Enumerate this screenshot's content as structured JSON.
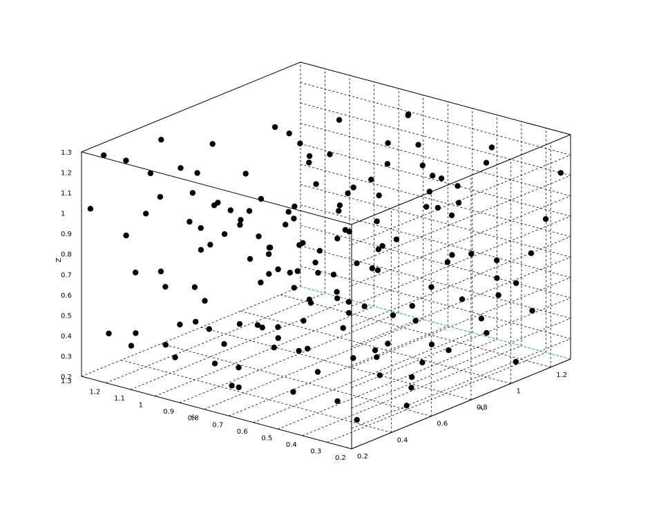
{
  "chart_data": {
    "type": "scatter",
    "title": "",
    "xlabel": "X",
    "ylabel": "Y",
    "zlabel": "Z",
    "xlim": [
      0.2,
      1.3
    ],
    "ylim": [
      0.2,
      1.3
    ],
    "zlim": [
      0.2,
      1.3
    ],
    "x_ticks": [
      "0.2",
      "0.3",
      "0.4",
      "0.5",
      "0.6",
      "0.7",
      "0.8",
      "0.9",
      "1",
      "1.1",
      "1.2",
      "1.3"
    ],
    "y_ticks": [
      "0.2",
      "0.4",
      "0.6",
      "0.8",
      "1",
      "1.2"
    ],
    "z_ticks": [
      "0.2",
      "0.3",
      "0.4",
      "0.5",
      "0.6",
      "0.7",
      "0.8",
      "0.9",
      "1",
      "1.1",
      "1.2",
      "1.3"
    ],
    "grid": true,
    "marker_color": "#000000",
    "points": [
      [
        1.25,
        0.25,
        1.28
      ],
      [
        1.1,
        0.3,
        1.22
      ],
      [
        0.95,
        0.35,
        1.25
      ],
      [
        0.8,
        0.25,
        1.18
      ],
      [
        0.65,
        0.3,
        1.24
      ],
      [
        0.5,
        0.28,
        1.2
      ],
      [
        0.35,
        0.32,
        1.27
      ],
      [
        0.22,
        0.6,
        1.22
      ],
      [
        0.25,
        0.8,
        1.15
      ],
      [
        0.3,
        1.0,
        1.25
      ],
      [
        0.45,
        0.9,
        1.1
      ],
      [
        0.6,
        1.1,
        1.05
      ],
      [
        0.75,
        0.7,
        1.12
      ],
      [
        0.9,
        0.55,
        1.0
      ],
      [
        1.05,
        0.45,
        1.08
      ],
      [
        1.2,
        0.4,
        0.95
      ],
      [
        1.28,
        0.22,
        1.02
      ],
      [
        1.15,
        0.7,
        0.9
      ],
      [
        1.0,
        0.9,
        0.85
      ],
      [
        0.85,
        1.1,
        0.95
      ],
      [
        0.7,
        1.25,
        0.8
      ],
      [
        0.55,
        0.45,
        0.9
      ],
      [
        0.4,
        0.55,
        0.88
      ],
      [
        0.28,
        0.9,
        0.85
      ],
      [
        0.22,
        1.2,
        0.92
      ],
      [
        0.32,
        1.25,
        0.7
      ],
      [
        0.48,
        1.05,
        0.72
      ],
      [
        0.62,
        0.85,
        0.68
      ],
      [
        0.78,
        0.5,
        0.75
      ],
      [
        0.92,
        0.3,
        0.72
      ],
      [
        1.08,
        0.35,
        0.65
      ],
      [
        1.22,
        0.5,
        0.62
      ],
      [
        1.3,
        0.8,
        0.58
      ],
      [
        1.18,
        1.0,
        0.55
      ],
      [
        1.02,
        1.2,
        0.6
      ],
      [
        0.88,
        0.75,
        0.55
      ],
      [
        0.72,
        0.6,
        0.5
      ],
      [
        0.58,
        0.3,
        0.58
      ],
      [
        0.42,
        0.25,
        0.6
      ],
      [
        0.26,
        0.4,
        0.55
      ],
      [
        0.21,
        0.7,
        0.48
      ],
      [
        0.36,
        0.8,
        0.42
      ],
      [
        0.52,
        1.15,
        0.45
      ],
      [
        0.68,
        1.0,
        0.38
      ],
      [
        0.82,
        0.95,
        0.42
      ],
      [
        0.98,
        0.6,
        0.4
      ],
      [
        1.12,
        0.25,
        0.45
      ],
      [
        1.27,
        0.3,
        0.38
      ],
      [
        1.2,
        0.65,
        0.32
      ],
      [
        1.05,
        0.8,
        0.28
      ],
      [
        0.9,
        1.05,
        0.3
      ],
      [
        0.75,
        1.2,
        0.25
      ],
      [
        0.6,
        0.4,
        0.27
      ],
      [
        0.45,
        0.65,
        0.3
      ],
      [
        0.3,
        0.35,
        0.25
      ],
      [
        0.22,
        1.05,
        0.28
      ],
      [
        0.38,
        1.1,
        0.35
      ],
      [
        0.55,
        0.75,
        0.35
      ],
      [
        0.7,
        0.25,
        0.32
      ],
      [
        0.85,
        0.4,
        0.22
      ],
      [
        1.0,
        0.5,
        0.24
      ],
      [
        1.15,
        0.9,
        0.22
      ],
      [
        1.3,
        1.1,
        0.3
      ],
      [
        1.25,
        1.25,
        0.45
      ],
      [
        1.1,
        1.15,
        0.5
      ],
      [
        0.95,
        1.28,
        0.52
      ],
      [
        0.8,
        0.85,
        0.6
      ],
      [
        0.65,
        0.55,
        0.63
      ],
      [
        0.5,
        0.2,
        0.7
      ],
      [
        0.35,
        0.45,
        0.75
      ],
      [
        0.24,
        0.65,
        0.8
      ],
      [
        0.4,
        0.95,
        0.98
      ],
      [
        0.55,
        0.6,
        1.0
      ],
      [
        0.7,
        0.35,
        1.02
      ],
      [
        0.86,
        0.2,
        1.1
      ],
      [
        1.02,
        0.25,
        1.15
      ],
      [
        1.18,
        0.55,
        1.12
      ],
      [
        1.3,
        0.6,
        1.2
      ],
      [
        1.12,
        0.95,
        1.18
      ],
      [
        0.98,
        1.1,
        1.2
      ],
      [
        0.82,
        1.25,
        1.22
      ],
      [
        0.66,
        0.95,
        1.25
      ],
      [
        0.5,
        0.75,
        1.28
      ],
      [
        0.34,
        0.5,
        1.15
      ],
      [
        0.26,
        0.3,
        1.05
      ],
      [
        0.42,
        0.2,
        1.0
      ],
      [
        0.58,
        0.5,
        0.82
      ],
      [
        0.74,
        0.45,
        0.88
      ],
      [
        0.9,
        0.65,
        0.78
      ],
      [
        1.06,
        0.7,
        0.82
      ],
      [
        1.22,
        0.85,
        0.78
      ],
      [
        1.28,
        1.0,
        0.88
      ],
      [
        1.14,
        1.25,
        0.92
      ],
      [
        0.96,
        0.4,
        0.6
      ],
      [
        0.8,
        0.3,
        0.48
      ],
      [
        0.64,
        0.7,
        0.45
      ],
      [
        0.48,
        0.85,
        0.55
      ],
      [
        0.32,
        1.0,
        0.48
      ],
      [
        0.2,
        0.5,
        0.38
      ],
      [
        0.36,
        0.7,
        0.3
      ],
      [
        0.52,
        0.95,
        0.22
      ],
      [
        0.68,
        0.8,
        0.25
      ],
      [
        0.84,
        0.6,
        0.33
      ],
      [
        1.0,
        0.3,
        0.35
      ],
      [
        1.16,
        0.45,
        0.3
      ],
      [
        1.3,
        0.45,
        0.25
      ],
      [
        1.26,
        0.75,
        0.72
      ],
      [
        1.1,
        0.6,
        0.75
      ],
      [
        0.94,
        0.85,
        0.7
      ],
      [
        0.78,
        1.05,
        0.65
      ],
      [
        0.62,
        1.2,
        0.58
      ],
      [
        0.46,
        1.25,
        0.62
      ],
      [
        0.3,
        1.15,
        0.6
      ],
      [
        0.21,
        0.95,
        0.65
      ],
      [
        0.38,
        0.35,
        0.82
      ],
      [
        0.54,
        0.25,
        0.95
      ],
      [
        0.7,
        0.5,
        1.08
      ],
      [
        0.86,
        0.8,
        1.15
      ],
      [
        1.02,
        1.0,
        1.05
      ],
      [
        1.18,
        1.15,
        1.0
      ],
      [
        1.24,
        0.35,
        0.85
      ],
      [
        1.08,
        0.2,
        0.78
      ],
      [
        0.92,
        0.45,
        0.92
      ],
      [
        0.76,
        0.9,
        1.02
      ],
      [
        0.6,
        1.05,
        1.12
      ],
      [
        0.44,
        1.2,
        1.2
      ],
      [
        0.28,
        0.75,
        1.28
      ],
      [
        0.22,
        0.45,
        1.12
      ],
      [
        0.5,
        0.4,
        0.4
      ],
      [
        0.66,
        0.2,
        0.45
      ],
      [
        0.82,
        0.7,
        0.28
      ],
      [
        0.98,
        0.95,
        0.38
      ],
      [
        1.14,
        1.05,
        0.42
      ],
      [
        1.28,
        1.2,
        0.55
      ],
      [
        1.2,
        0.3,
        1.25
      ],
      [
        1.05,
        0.55,
        1.28
      ],
      [
        0.9,
        0.75,
        1.3
      ],
      [
        0.74,
        1.15,
        1.28
      ],
      [
        0.58,
        0.65,
        1.15
      ],
      [
        0.42,
        0.4,
        1.08
      ],
      [
        0.26,
        0.2,
        0.95
      ],
      [
        0.3,
        0.6,
        0.22
      ],
      [
        0.46,
        0.45,
        0.25
      ],
      [
        0.62,
        0.9,
        0.3
      ],
      [
        0.78,
        0.2,
        0.6
      ],
      [
        0.94,
        0.25,
        0.55
      ],
      [
        1.1,
        0.8,
        0.6
      ],
      [
        1.26,
        0.95,
        0.68
      ],
      [
        0.34,
        1.28,
        0.4
      ],
      [
        0.5,
        1.3,
        0.5
      ],
      [
        0.66,
        1.3,
        0.9
      ],
      [
        0.82,
        1.3,
        1.05
      ],
      [
        0.98,
        1.3,
        0.75
      ],
      [
        1.14,
        1.3,
        0.65
      ],
      [
        0.24,
        1.3,
        1.1
      ]
    ]
  }
}
